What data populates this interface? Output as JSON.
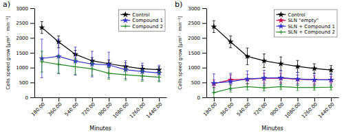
{
  "chart_data": [
    {
      "type": "line",
      "title": "a)",
      "xlabel": "Minutes",
      "ylabel": "Cells speed grow [μm² · min⁻¹]",
      "x": [
        180,
        360,
        540,
        720,
        900,
        1080,
        1260,
        1440
      ],
      "xlim": [
        100,
        1520
      ],
      "xticks": [
        {
          "value": 180,
          "label": "180.00"
        },
        {
          "value": 360,
          "label": "360.00"
        },
        {
          "value": 540,
          "label": "540.00"
        },
        {
          "value": 720,
          "label": "720.00"
        },
        {
          "value": 900,
          "label": "900.00"
        },
        {
          "value": 1080,
          "label": "1080.00"
        },
        {
          "value": 1260,
          "label": "1260.00"
        },
        {
          "value": 1440,
          "label": "1440.00"
        }
      ],
      "ylim": [
        0,
        3000
      ],
      "yticks": [
        0,
        500,
        1000,
        1500,
        2000,
        2500,
        3000
      ],
      "legend": "upper right",
      "series": [
        {
          "name": "Control",
          "color": "#000000",
          "marker": "star",
          "values": [
            2350,
            1870,
            1450,
            1230,
            1130,
            1040,
            960,
            930
          ],
          "errors": [
            200,
            200,
            130,
            110,
            130,
            120,
            110,
            100
          ]
        },
        {
          "name": "Compound 1",
          "color": "#3333cc",
          "marker": "star",
          "values": [
            1310,
            1380,
            1220,
            1120,
            1090,
            930,
            870,
            820
          ],
          "errors": [
            650,
            580,
            470,
            430,
            430,
            300,
            280,
            260
          ]
        },
        {
          "name": "Compound 2",
          "color": "#228B22",
          "marker": "plus",
          "values": [
            1200,
            1110,
            1030,
            960,
            810,
            760,
            720,
            680
          ],
          "errors": [
            350,
            300,
            250,
            220,
            200,
            180,
            180,
            160
          ]
        }
      ]
    },
    {
      "type": "line",
      "title": "b)",
      "xlabel": "Minutes",
      "ylabel": "Cells speed grow [μm² · min⁻¹]",
      "x": [
        180,
        360,
        540,
        720,
        900,
        1080,
        1260,
        1440
      ],
      "xlim": [
        100,
        1520
      ],
      "xticks": [
        {
          "value": 180,
          "label": "180.00"
        },
        {
          "value": 360,
          "label": "360.00"
        },
        {
          "value": 540,
          "label": "540.00"
        },
        {
          "value": 720,
          "label": "720.00"
        },
        {
          "value": 900,
          "label": "900.00"
        },
        {
          "value": 1080,
          "label": "1080.00"
        },
        {
          "value": 1260,
          "label": "1260.00"
        },
        {
          "value": 1440,
          "label": "1440.00"
        }
      ],
      "ylim": [
        0,
        3000
      ],
      "yticks": [
        0,
        500,
        1000,
        1500,
        2000,
        2500,
        3000
      ],
      "legend": "upper right",
      "series": [
        {
          "name": "Control",
          "color": "#000000",
          "marker": "star",
          "values": [
            2380,
            1870,
            1380,
            1230,
            1130,
            1040,
            970,
            920
          ],
          "errors": [
            200,
            200,
            280,
            230,
            230,
            200,
            160,
            150
          ]
        },
        {
          "name": "SLN \"empty\"",
          "color": "#cc0044",
          "marker": "star",
          "values": [
            460,
            590,
            610,
            640,
            650,
            610,
            590,
            590
          ],
          "errors": [
            130,
            170,
            160,
            170,
            160,
            140,
            140,
            110
          ]
        },
        {
          "name": "SLN + Compound 1",
          "color": "#3333cc",
          "marker": "star",
          "values": [
            480,
            530,
            620,
            650,
            660,
            620,
            590,
            590
          ],
          "errors": [
            310,
            280,
            270,
            260,
            230,
            220,
            210,
            200
          ]
        },
        {
          "name": "SLN + Compound 2",
          "color": "#228B22",
          "marker": "plus",
          "values": [
            160,
            300,
            360,
            320,
            360,
            330,
            330,
            340
          ],
          "errors": [
            160,
            120,
            110,
            100,
            100,
            100,
            90,
            90
          ]
        }
      ]
    }
  ]
}
